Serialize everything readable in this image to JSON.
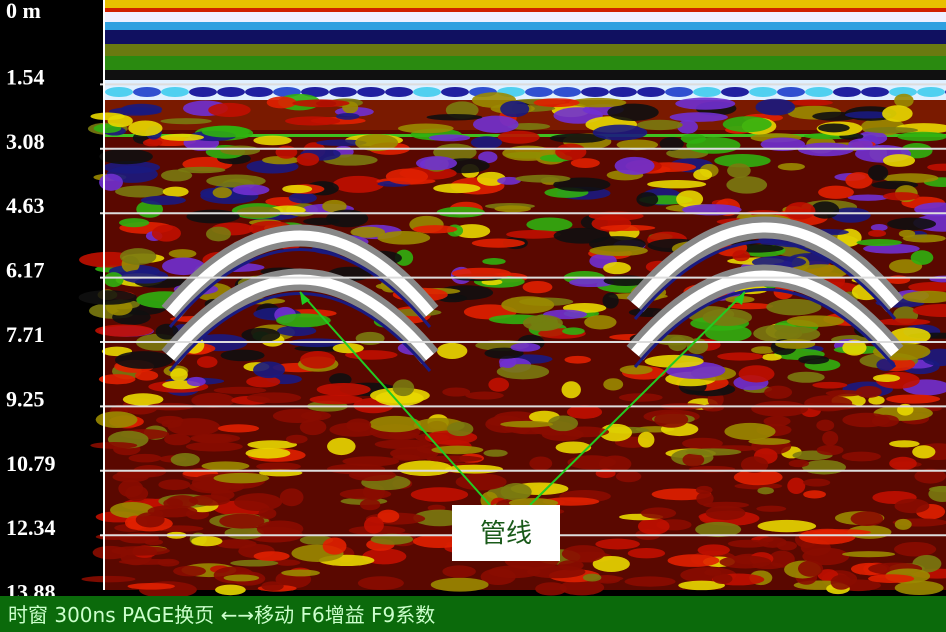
{
  "depth_axis": {
    "labels": [
      "0 m",
      "1.54",
      "3.08",
      "4.63",
      "6.17",
      "7.71",
      "9.25",
      "10.79",
      "12.34",
      "13.88"
    ]
  },
  "annotation": "管线",
  "status_bar": "时窗 300ns PAGE换页 ←→移动 F6增益 F9系数"
}
